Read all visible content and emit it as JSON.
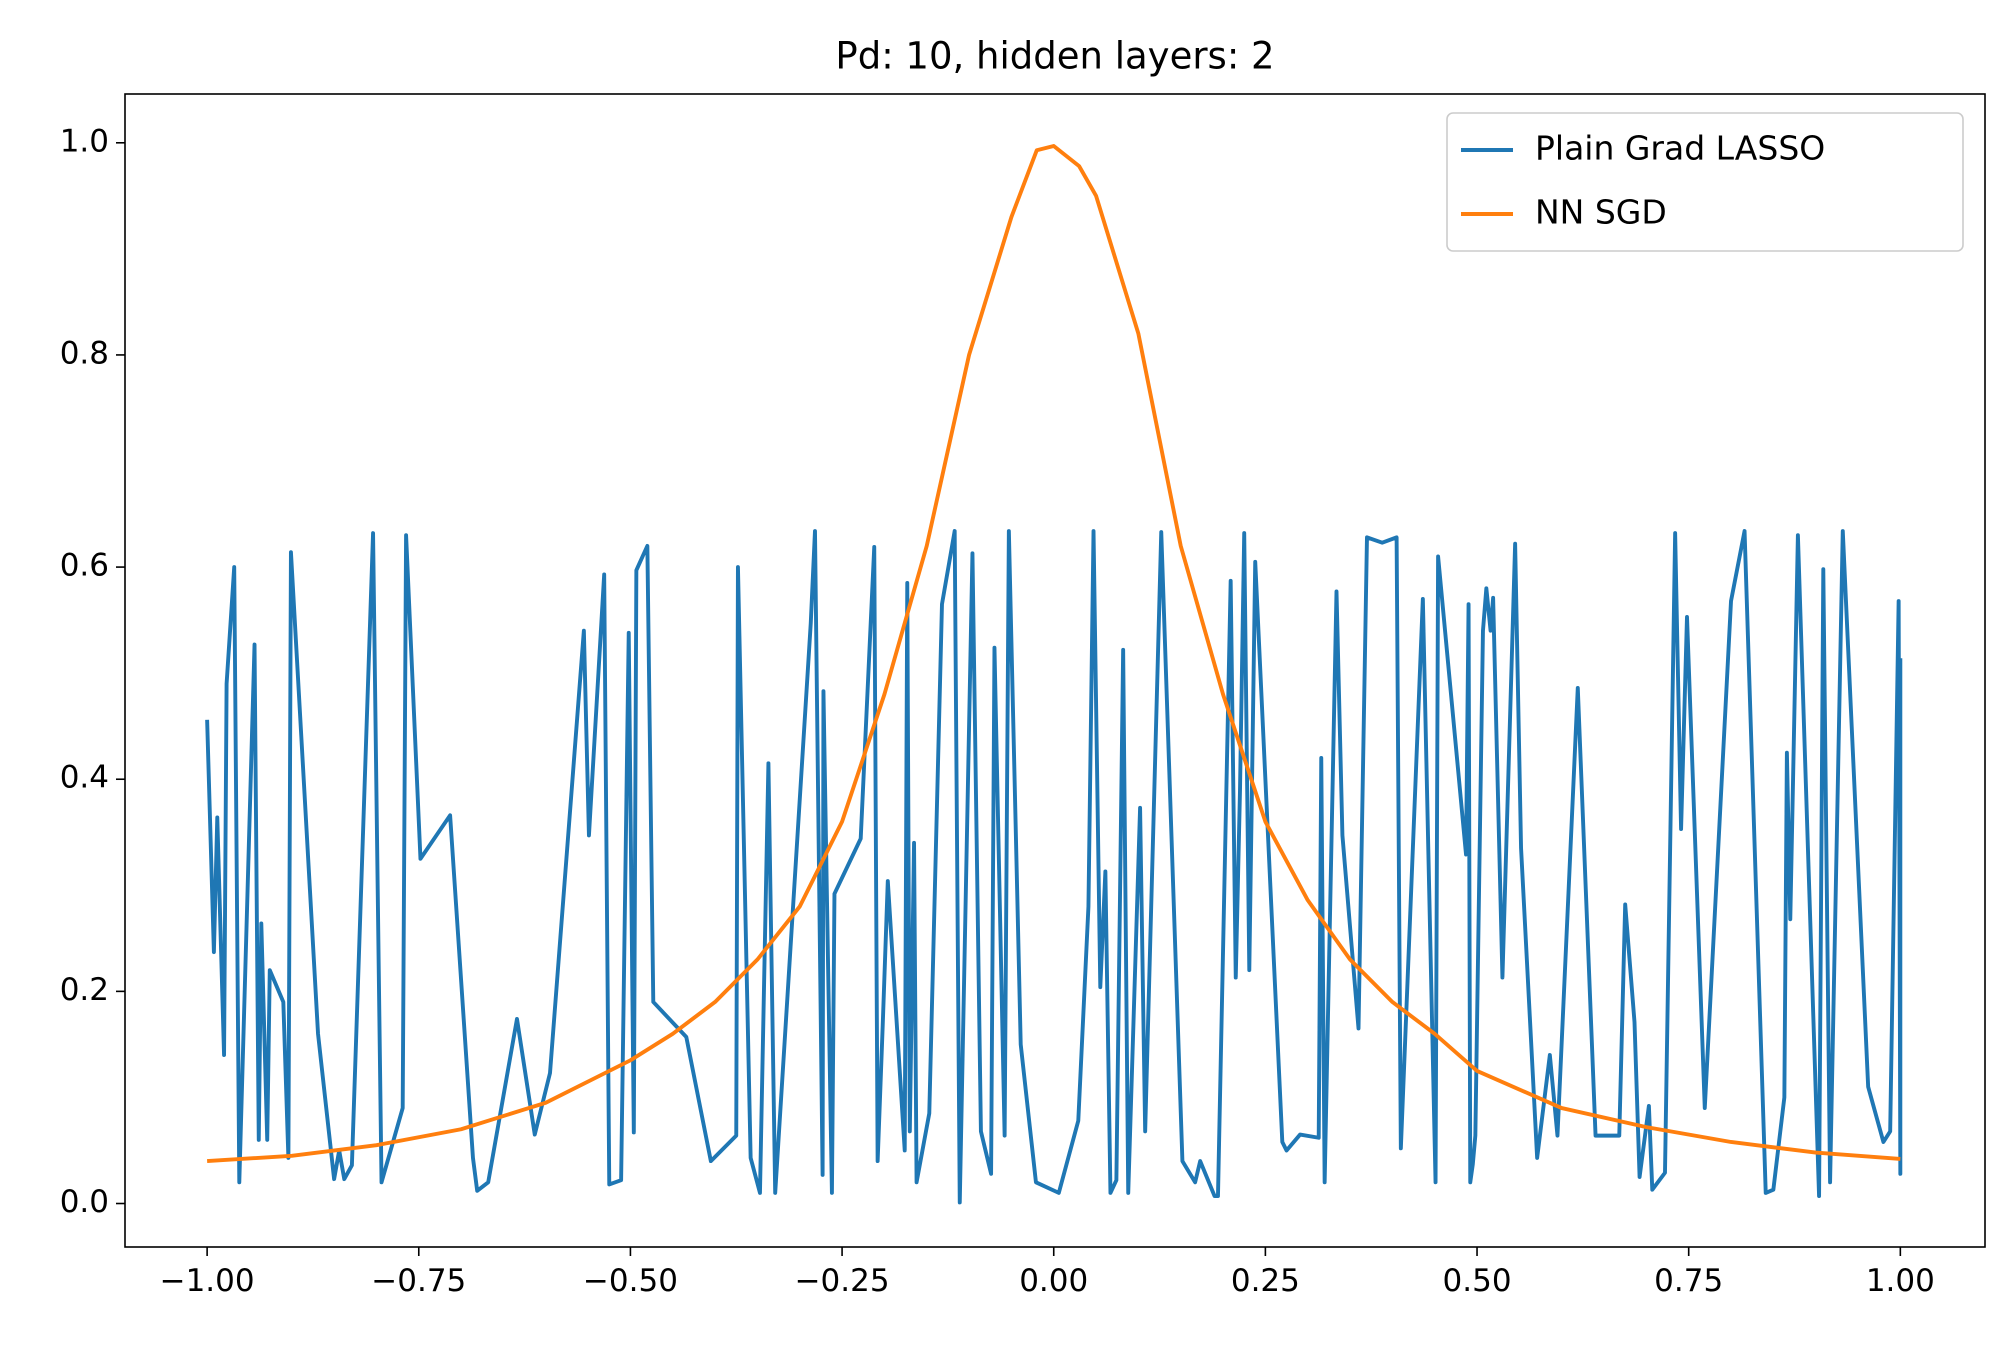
{
  "chart_data": {
    "type": "line",
    "title": "Pd: 10, hidden layers: 2",
    "xlim": [
      -1.097,
      1.1
    ],
    "ylim": [
      -0.041,
      1.046
    ],
    "xticks": [
      {
        "value": -1.0,
        "label": "−1.00"
      },
      {
        "value": -0.75,
        "label": "−0.75"
      },
      {
        "value": -0.5,
        "label": "−0.50"
      },
      {
        "value": -0.25,
        "label": "−0.25"
      },
      {
        "value": 0.0,
        "label": "0.00"
      },
      {
        "value": 0.25,
        "label": "0.25"
      },
      {
        "value": 0.5,
        "label": "0.50"
      },
      {
        "value": 0.75,
        "label": "0.75"
      },
      {
        "value": 1.0,
        "label": "1.00"
      }
    ],
    "yticks": [
      {
        "value": 0.0,
        "label": "0.0"
      },
      {
        "value": 0.2,
        "label": "0.2"
      },
      {
        "value": 0.4,
        "label": "0.4"
      },
      {
        "value": 0.6,
        "label": "0.6"
      },
      {
        "value": 0.8,
        "label": "0.8"
      },
      {
        "value": 1.0,
        "label": "1.0"
      }
    ],
    "legend": "upper right",
    "series": [
      {
        "name": "Plain Grad LASSO",
        "color": "#1f77b4",
        "x": [
          -1.0,
          -0.992,
          -0.988,
          -0.98,
          -0.977,
          -0.968,
          -0.962,
          -0.944,
          -0.939,
          -0.936,
          -0.929,
          -0.926,
          -0.91,
          -0.904,
          -0.901,
          -0.869,
          -0.85,
          -0.844,
          -0.838,
          -0.829,
          -0.804,
          -0.794,
          -0.769,
          -0.765,
          -0.748,
          -0.713,
          -0.686,
          -0.681,
          -0.668,
          -0.634,
          -0.613,
          -0.595,
          -0.555,
          -0.549,
          -0.531,
          -0.525,
          -0.511,
          -0.502,
          -0.496,
          -0.493,
          -0.48,
          -0.473,
          -0.434,
          -0.405,
          -0.375,
          -0.373,
          -0.358,
          -0.347,
          -0.337,
          -0.329,
          -0.287,
          -0.282,
          -0.273,
          -0.272,
          -0.262,
          -0.259,
          -0.228,
          -0.212,
          -0.208,
          -0.202,
          -0.196,
          -0.176,
          -0.173,
          -0.17,
          -0.165,
          -0.162,
          -0.147,
          -0.132,
          -0.117,
          -0.111,
          -0.096,
          -0.086,
          -0.074,
          -0.07,
          -0.058,
          -0.053,
          -0.039,
          -0.021,
          0.006,
          0.029,
          0.041,
          0.047,
          0.055,
          0.061,
          0.067,
          0.074,
          0.082,
          0.088,
          0.102,
          0.108,
          0.127,
          0.152,
          0.167,
          0.173,
          0.19,
          0.194,
          0.209,
          0.215,
          0.22,
          0.225,
          0.231,
          0.238,
          0.27,
          0.275,
          0.291,
          0.313,
          0.316,
          0.32,
          0.334,
          0.341,
          0.36,
          0.37,
          0.388,
          0.405,
          0.41,
          0.436,
          0.451,
          0.454,
          0.487,
          0.49,
          0.492,
          0.495,
          0.498,
          0.507,
          0.511,
          0.516,
          0.519,
          0.53,
          0.545,
          0.552,
          0.571,
          0.586,
          0.595,
          0.619,
          0.64,
          0.668,
          0.675,
          0.686,
          0.692,
          0.703,
          0.707,
          0.722,
          0.734,
          0.741,
          0.748,
          0.769,
          0.8,
          0.816,
          0.841,
          0.85,
          0.863,
          0.866,
          0.87,
          0.879,
          0.904,
          0.909,
          0.917,
          0.932,
          0.962,
          0.98,
          0.988,
          0.998,
          1.0,
          1.0
        ],
        "values": [
          0.456,
          0.237,
          0.364,
          0.14,
          0.49,
          0.6,
          0.02,
          0.527,
          0.06,
          0.264,
          0.06,
          0.22,
          0.19,
          0.043,
          0.614,
          0.16,
          0.023,
          0.05,
          0.023,
          0.036,
          0.632,
          0.02,
          0.09,
          0.63,
          0.325,
          0.366,
          0.043,
          0.012,
          0.02,
          0.174,
          0.065,
          0.123,
          0.54,
          0.347,
          0.593,
          0.018,
          0.022,
          0.538,
          0.067,
          0.597,
          0.62,
          0.19,
          0.157,
          0.04,
          0.064,
          0.6,
          0.043,
          0.01,
          0.415,
          0.01,
          0.547,
          0.634,
          0.027,
          0.483,
          0.01,
          0.292,
          0.344,
          0.619,
          0.04,
          0.168,
          0.304,
          0.05,
          0.585,
          0.068,
          0.34,
          0.02,
          0.085,
          0.565,
          0.634,
          0.001,
          0.613,
          0.068,
          0.028,
          0.524,
          0.064,
          0.634,
          0.15,
          0.02,
          0.01,
          0.078,
          0.28,
          0.634,
          0.204,
          0.313,
          0.01,
          0.022,
          0.522,
          0.01,
          0.373,
          0.068,
          0.633,
          0.04,
          0.02,
          0.04,
          0.007,
          0.007,
          0.587,
          0.213,
          0.389,
          0.632,
          0.22,
          0.605,
          0.058,
          0.05,
          0.065,
          0.062,
          0.42,
          0.02,
          0.577,
          0.347,
          0.165,
          0.628,
          0.623,
          0.628,
          0.052,
          0.57,
          0.02,
          0.61,
          0.329,
          0.565,
          0.02,
          0.037,
          0.064,
          0.54,
          0.58,
          0.54,
          0.571,
          0.213,
          0.622,
          0.335,
          0.043,
          0.14,
          0.064,
          0.486,
          0.064,
          0.064,
          0.282,
          0.171,
          0.025,
          0.092,
          0.013,
          0.029,
          0.632,
          0.353,
          0.553,
          0.09,
          0.568,
          0.634,
          0.01,
          0.013,
          0.1,
          0.425,
          0.268,
          0.63,
          0.007,
          0.598,
          0.02,
          0.634,
          0.11,
          0.058,
          0.068,
          0.568,
          0.028,
          0.514
        ]
      },
      {
        "name": "NN SGD",
        "color": "#ff7f0e",
        "x": [
          -1.0,
          -0.9,
          -0.8,
          -0.7,
          -0.6,
          -0.5,
          -0.45,
          -0.4,
          -0.35,
          -0.3,
          -0.25,
          -0.2,
          -0.15,
          -0.1,
          -0.05,
          -0.02,
          0.0,
          0.03,
          0.05,
          0.1,
          0.15,
          0.2,
          0.25,
          0.3,
          0.35,
          0.4,
          0.45,
          0.5,
          0.6,
          0.7,
          0.8,
          0.9,
          1.0
        ],
        "values": [
          0.04,
          0.045,
          0.055,
          0.07,
          0.095,
          0.135,
          0.16,
          0.19,
          0.23,
          0.28,
          0.36,
          0.48,
          0.62,
          0.8,
          0.93,
          0.993,
          0.997,
          0.978,
          0.95,
          0.82,
          0.62,
          0.48,
          0.36,
          0.286,
          0.23,
          0.19,
          0.16,
          0.125,
          0.09,
          0.072,
          0.058,
          0.048,
          0.042
        ]
      }
    ]
  }
}
